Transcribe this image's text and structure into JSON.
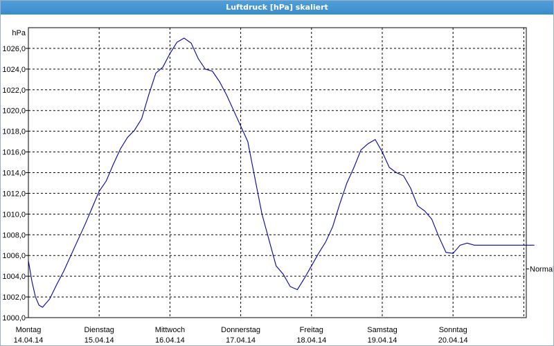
{
  "window": {
    "title": "Luftdruck [hPa] skaliert"
  },
  "chart_data": {
    "type": "line",
    "title": "Luftdruck [hPa] skaliert",
    "ylabel": "hPa",
    "reference_label": "Normal",
    "reference_value": 1004.7,
    "ylim": [
      1000.0,
      1028.0
    ],
    "yticks": [
      "1000,0",
      "1002,0",
      "1004,0",
      "1006,0",
      "1008,0",
      "1010,0",
      "1012,0",
      "1014,0",
      "1016,0",
      "1018,0",
      "1020,0",
      "1022,0",
      "1024,0",
      "1026,0"
    ],
    "ytick_values": [
      1000,
      1002,
      1004,
      1006,
      1008,
      1010,
      1012,
      1014,
      1016,
      1018,
      1020,
      1022,
      1024,
      1026
    ],
    "xlim": [
      0,
      7.15
    ],
    "days": [
      {
        "weekday": "Montag",
        "date": "14.04.14"
      },
      {
        "weekday": "Dienstag",
        "date": "15.04.14"
      },
      {
        "weekday": "Mittwoch",
        "date": "16.04.14"
      },
      {
        "weekday": "Donnerstag",
        "date": "17.04.14"
      },
      {
        "weekday": "Freitag",
        "date": "18.04.14"
      },
      {
        "weekday": "Samstag",
        "date": "19.04.14"
      },
      {
        "weekday": "Sonntag",
        "date": "20.04.14"
      }
    ],
    "grid": true,
    "series": [
      {
        "color": "#0000a8",
        "x": [
          0.0,
          0.05,
          0.1,
          0.15,
          0.2,
          0.3,
          0.4,
          0.5,
          0.6,
          0.7,
          0.8,
          0.9,
          1.0,
          1.1,
          1.2,
          1.3,
          1.4,
          1.5,
          1.6,
          1.7,
          1.8,
          1.9,
          2.0,
          2.1,
          2.2,
          2.3,
          2.4,
          2.5,
          2.6,
          2.7,
          2.8,
          2.9,
          3.0,
          3.1,
          3.2,
          3.3,
          3.4,
          3.5,
          3.6,
          3.7,
          3.8,
          3.9,
          4.0,
          4.1,
          4.2,
          4.3,
          4.4,
          4.5,
          4.6,
          4.7,
          4.8,
          4.9,
          5.0,
          5.1,
          5.2,
          5.3,
          5.4,
          5.5,
          5.6,
          5.7,
          5.8,
          5.9,
          6.0,
          6.1,
          6.2,
          6.3,
          6.4,
          6.5,
          6.6,
          6.7,
          6.8,
          6.9,
          7.0,
          7.1,
          7.15
        ],
        "y": [
          1005.5,
          1003.5,
          1002.0,
          1001.2,
          1001.0,
          1001.8,
          1003.2,
          1004.5,
          1006.0,
          1007.5,
          1009.0,
          1010.6,
          1012.2,
          1013.2,
          1014.8,
          1016.3,
          1017.4,
          1018.1,
          1019.2,
          1021.5,
          1023.6,
          1024.2,
          1025.5,
          1026.6,
          1027.0,
          1026.5,
          1025.0,
          1024.0,
          1023.8,
          1022.8,
          1021.5,
          1020.0,
          1018.5,
          1017.0,
          1013.5,
          1010.0,
          1007.5,
          1005.0,
          1004.2,
          1003.0,
          1002.7,
          1003.8,
          1005.0,
          1006.2,
          1007.3,
          1008.8,
          1011.0,
          1013.0,
          1014.5,
          1016.2,
          1016.8,
          1017.2,
          1016.0,
          1014.5,
          1014.0,
          1013.7,
          1012.5,
          1010.8,
          1010.3,
          1009.5,
          1007.8,
          1006.3,
          1006.2,
          1007.0,
          1007.2,
          1007.0,
          1007.0,
          1007.0,
          1007.0,
          1007.0,
          1007.0,
          1007.0,
          1007.0,
          1007.0,
          1007.0
        ]
      }
    ]
  }
}
